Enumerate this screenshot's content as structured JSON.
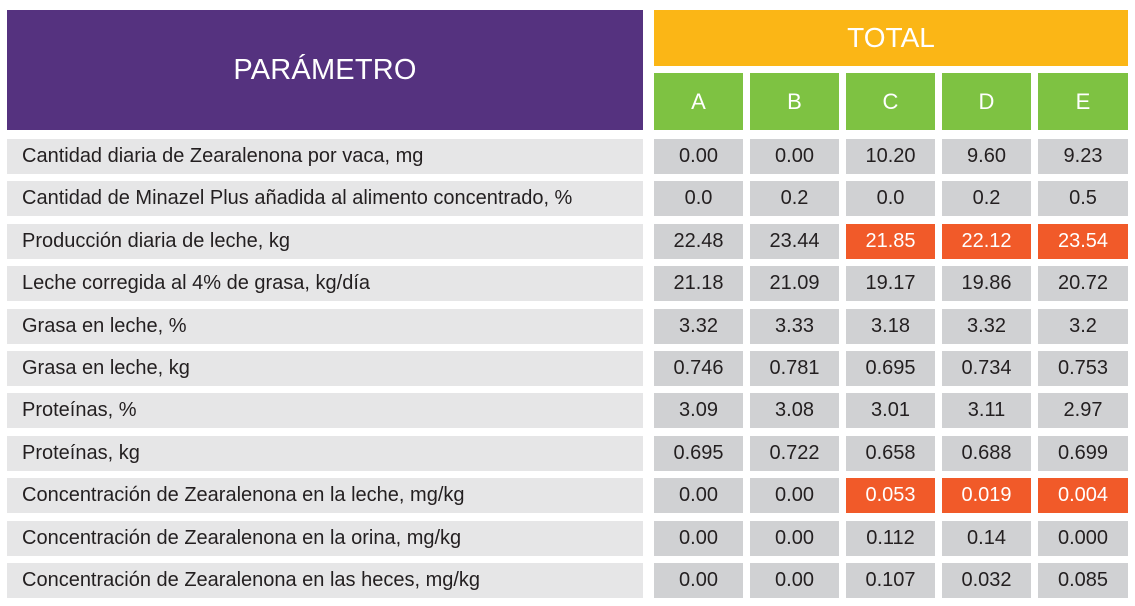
{
  "header": {
    "parameter_label": "PARÁMETRO",
    "total_label": "TOTAL",
    "columns": [
      "A",
      "B",
      "C",
      "D",
      "E"
    ]
  },
  "colors": {
    "parameter_header": "#55327f",
    "total_header": "#fbb616",
    "column_header": "#7ec242",
    "label_cell": "#e6e6e7",
    "value_cell": "#d0d1d3",
    "highlight": "#f15a29"
  },
  "rows": [
    {
      "label": "Cantidad diaria de Zearalenona por vaca, mg",
      "values": [
        "0.00",
        "0.00",
        "10.20",
        "9.60",
        "9.23"
      ],
      "highlight": [
        false,
        false,
        false,
        false,
        false
      ]
    },
    {
      "label": "Cantidad de Minazel Plus añadida al alimento concentrado, %",
      "values": [
        "0.0",
        "0.2",
        "0.0",
        "0.2",
        "0.5"
      ],
      "highlight": [
        false,
        false,
        false,
        false,
        false
      ]
    },
    {
      "label": "Producción diaria de leche, kg",
      "values": [
        "22.48",
        "23.44",
        "21.85",
        "22.12",
        "23.54"
      ],
      "highlight": [
        false,
        false,
        true,
        true,
        true
      ]
    },
    {
      "label": "Leche corregida al 4% de grasa, kg/día",
      "values": [
        "21.18",
        "21.09",
        "19.17",
        "19.86",
        "20.72"
      ],
      "highlight": [
        false,
        false,
        false,
        false,
        false
      ]
    },
    {
      "label": "Grasa en leche, %",
      "values": [
        "3.32",
        "3.33",
        "3.18",
        "3.32",
        "3.2"
      ],
      "highlight": [
        false,
        false,
        false,
        false,
        false
      ]
    },
    {
      "label": "Grasa en leche, kg",
      "values": [
        "0.746",
        "0.781",
        "0.695",
        "0.734",
        "0.753"
      ],
      "highlight": [
        false,
        false,
        false,
        false,
        false
      ]
    },
    {
      "label": "Proteínas, %",
      "values": [
        "3.09",
        "3.08",
        "3.01",
        "3.11",
        "2.97"
      ],
      "highlight": [
        false,
        false,
        false,
        false,
        false
      ]
    },
    {
      "label": "Proteínas, kg",
      "values": [
        "0.695",
        "0.722",
        "0.658",
        "0.688",
        "0.699"
      ],
      "highlight": [
        false,
        false,
        false,
        false,
        false
      ]
    },
    {
      "label": "Concentración de Zearalenona en la leche, mg/kg",
      "values": [
        "0.00",
        "0.00",
        "0.053",
        "0.019",
        "0.004"
      ],
      "highlight": [
        false,
        false,
        true,
        true,
        true
      ]
    },
    {
      "label": "Concentración de Zearalenona en la orina, mg/kg",
      "values": [
        "0.00",
        "0.00",
        "0.112",
        "0.14",
        "0.000"
      ],
      "highlight": [
        false,
        false,
        false,
        false,
        false
      ]
    },
    {
      "label": "Concentración de Zearalenona en las heces, mg/kg",
      "values": [
        "0.00",
        "0.00",
        "0.107",
        "0.032",
        "0.085"
      ],
      "highlight": [
        false,
        false,
        false,
        false,
        false
      ]
    }
  ]
}
